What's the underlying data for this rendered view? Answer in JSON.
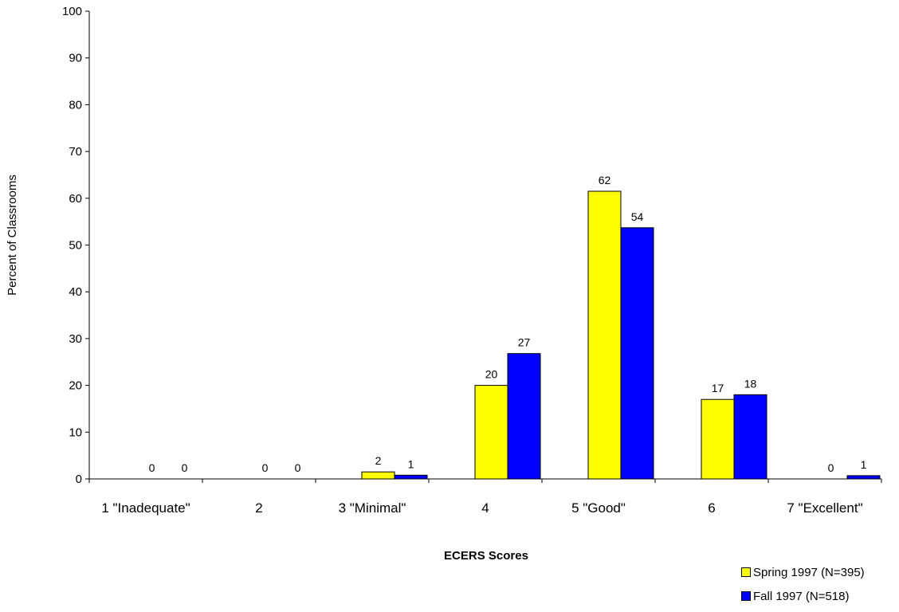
{
  "chart_data": {
    "type": "bar",
    "title": "",
    "xlabel": "ECERS Scores",
    "ylabel": "Percent of Classrooms",
    "categories": [
      "1 \"Inadequate\"",
      "2",
      "3 \"Minimal\"",
      "4",
      "5 \"Good\"",
      "6",
      "7 \"Excellent\""
    ],
    "yticks": [
      "0",
      "10",
      "20",
      "30",
      "40",
      "50",
      "60",
      "70",
      "80",
      "90",
      "100"
    ],
    "ylim": [
      0,
      100
    ],
    "grid": false,
    "legend_position": "bottom-right",
    "series": [
      {
        "name": "Spring 1997 (N=395)",
        "color": "#ffff00",
        "values": [
          0,
          0,
          1.5,
          20,
          61.5,
          17,
          0
        ],
        "labels": [
          "0",
          "0",
          "2",
          "20",
          "62",
          "17",
          "0"
        ]
      },
      {
        "name": "Fall 1997 (N=518)",
        "color": "#0000ff",
        "values": [
          0,
          0,
          0.8,
          26.8,
          53.7,
          18,
          0.7
        ],
        "labels": [
          "0",
          "0",
          "1",
          "27",
          "54",
          "18",
          "1"
        ]
      }
    ]
  }
}
